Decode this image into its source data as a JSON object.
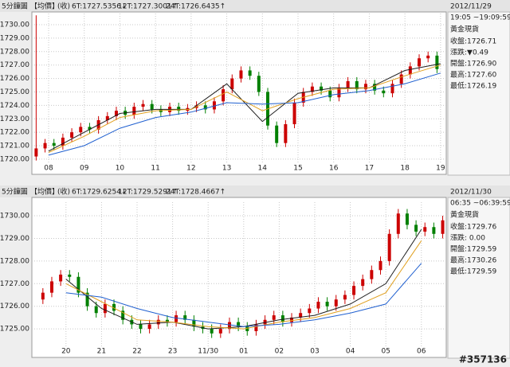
{
  "chart_data": [
    {
      "type": "candlestick",
      "header": [
        "5分鐘圖",
        "【均價】",
        "(收)"
      ],
      "info": {
        "date": "2012/11/29",
        "time": "19:05 ~19:09:59",
        "product": "黃金現貨",
        "rows": [
          "收盤:1726.71",
          "漲跌:▼0.49",
          "開盤:1726.90",
          "最高:1727.60",
          "最低:1726.19"
        ]
      },
      "up_color": "#cc0000",
      "down_color": "#008000",
      "xlim": [
        7.53,
        19.16
      ],
      "ylim": [
        1719.7,
        1730.83
      ],
      "xticks": [
        {
          "value": 8,
          "label": "08"
        },
        {
          "value": 9,
          "label": "09"
        },
        10,
        11,
        12,
        13,
        14,
        15,
        16,
        17,
        18,
        19
      ],
      "yticks": [
        {
          "value": 1720,
          "label": "1720.00"
        },
        {
          "value": 1721,
          "label": "1721.00"
        },
        {
          "value": 1722,
          "label": "1722.00"
        },
        {
          "value": 1723,
          "label": "1723.00"
        },
        {
          "value": 1724,
          "label": "1724.00"
        },
        {
          "value": 1725,
          "label": "1725.00"
        },
        {
          "value": 1726,
          "label": "1726.00"
        },
        {
          "value": 1727,
          "label": "1727.00"
        },
        {
          "value": 1728,
          "label": "1728.00"
        },
        {
          "value": 1729,
          "label": "1729.00"
        },
        {
          "value": 1730,
          "label": "1730.00"
        }
      ],
      "grid": true,
      "x": [
        7.65,
        7.9,
        8.15,
        8.4,
        8.65,
        8.9,
        9.15,
        9.4,
        9.65,
        9.9,
        10.15,
        10.4,
        10.65,
        10.9,
        11.15,
        11.4,
        11.65,
        11.9,
        12.15,
        12.4,
        12.65,
        12.9,
        13.15,
        13.4,
        13.65,
        13.9,
        14.15,
        14.4,
        14.65,
        14.9,
        15.15,
        15.4,
        15.65,
        15.9,
        16.15,
        16.4,
        16.65,
        16.9,
        17.15,
        17.4,
        17.65,
        17.9,
        18.15,
        18.4,
        18.65,
        18.9
      ],
      "open": [
        1720.2,
        1720.8,
        1721.2,
        1721.0,
        1721.6,
        1722.0,
        1722.4,
        1722.2,
        1722.9,
        1723.2,
        1723.6,
        1723.3,
        1723.9,
        1724.1,
        1723.7,
        1723.5,
        1723.9,
        1723.6,
        1723.8,
        1724.0,
        1723.7,
        1724.3,
        1725.2,
        1726.0,
        1726.6,
        1726.2,
        1725.0,
        1722.5,
        1721.2,
        1722.6,
        1724.2,
        1725.0,
        1725.4,
        1725.1,
        1724.6,
        1725.3,
        1725.8,
        1725.2,
        1725.6,
        1725.1,
        1724.9,
        1725.6,
        1726.3,
        1726.9,
        1727.5,
        1727.7
      ],
      "high": [
        1730.7,
        1721.5,
        1721.5,
        1721.9,
        1722.3,
        1722.7,
        1722.7,
        1723.2,
        1723.5,
        1723.9,
        1723.9,
        1724.2,
        1724.4,
        1724.4,
        1724.0,
        1724.2,
        1724.2,
        1724.1,
        1724.3,
        1724.3,
        1724.6,
        1725.5,
        1726.3,
        1726.9,
        1726.9,
        1726.5,
        1725.3,
        1722.8,
        1722.9,
        1724.5,
        1725.3,
        1725.7,
        1725.7,
        1725.4,
        1725.6,
        1726.1,
        1726.1,
        1725.9,
        1725.9,
        1725.4,
        1725.9,
        1726.6,
        1727.2,
        1727.8,
        1728.0,
        1728.0
      ],
      "low": [
        1719.9,
        1720.5,
        1720.7,
        1720.7,
        1721.3,
        1721.7,
        1721.9,
        1721.9,
        1722.6,
        1722.9,
        1723.0,
        1723.0,
        1723.6,
        1723.4,
        1723.2,
        1723.2,
        1723.3,
        1723.3,
        1723.5,
        1723.4,
        1723.4,
        1724.0,
        1724.9,
        1725.7,
        1725.9,
        1724.7,
        1722.2,
        1720.9,
        1720.9,
        1722.3,
        1723.9,
        1724.7,
        1724.8,
        1724.3,
        1724.3,
        1725.0,
        1724.9,
        1724.9,
        1724.8,
        1724.6,
        1724.6,
        1725.3,
        1726.0,
        1726.6,
        1727.2,
        1726.4
      ],
      "close": [
        1720.8,
        1721.2,
        1721.0,
        1721.6,
        1722.0,
        1722.4,
        1722.2,
        1722.9,
        1723.2,
        1723.6,
        1723.3,
        1723.9,
        1724.1,
        1723.7,
        1723.5,
        1723.9,
        1723.6,
        1723.8,
        1724.0,
        1723.7,
        1724.3,
        1725.2,
        1726.0,
        1726.6,
        1726.2,
        1725.0,
        1722.5,
        1721.2,
        1722.6,
        1724.2,
        1725.0,
        1725.4,
        1725.1,
        1724.6,
        1725.3,
        1725.8,
        1725.2,
        1725.6,
        1725.1,
        1724.9,
        1725.6,
        1726.3,
        1726.9,
        1727.5,
        1727.7,
        1726.7
      ],
      "series": [
        {
          "name": "6T:1727.5356↓",
          "color": "#1f1f1f",
          "x": [
            8,
            9,
            10,
            11,
            12,
            13,
            14,
            15,
            16,
            17,
            18,
            19
          ],
          "values": [
            1720.6,
            1722.0,
            1723.4,
            1723.7,
            1723.7,
            1725.6,
            1722.8,
            1724.9,
            1725.3,
            1725.3,
            1726.6,
            1727.1
          ]
        },
        {
          "name": "12T:1727.3001↑",
          "color": "#e0a020",
          "x": [
            8,
            9,
            10,
            11,
            12,
            13,
            14,
            15,
            16,
            17,
            18,
            19
          ],
          "values": [
            1720.5,
            1721.7,
            1723.1,
            1723.6,
            1723.7,
            1725.0,
            1723.6,
            1724.5,
            1725.2,
            1725.3,
            1726.2,
            1727.0
          ]
        },
        {
          "name": "24T:1726.6435↑",
          "color": "#2060d0",
          "x": [
            8,
            9,
            10,
            11,
            12,
            13,
            14,
            15,
            16,
            17,
            18,
            19
          ],
          "values": [
            1720.3,
            1721.0,
            1722.3,
            1723.1,
            1723.5,
            1724.2,
            1724.1,
            1724.2,
            1724.8,
            1725.1,
            1725.6,
            1726.4
          ]
        }
      ]
    },
    {
      "type": "candlestick",
      "header": [
        "5分鐘圖",
        "【均價】",
        "(收)"
      ],
      "info": {
        "date": "2012/11/30",
        "time": "06:35 ~06:39:59",
        "product": "黃金現貨",
        "rows": [
          "收盤:1729.76",
          "漲跌: 0.00",
          "開盤:1729.59",
          "最高:1730.26",
          "最低:1729.59"
        ]
      },
      "up_color": "#cc0000",
      "down_color": "#008000",
      "xlim": [
        19.04,
        30.7
      ],
      "ylim": [
        1724.23,
        1730.6
      ],
      "xticks": [
        20,
        21,
        22,
        23,
        {
          "value": 24,
          "label": "11/30"
        },
        {
          "value": 25,
          "label": "01"
        },
        {
          "value": 26,
          "label": "02"
        },
        {
          "value": 27,
          "label": "03"
        },
        {
          "value": 28,
          "label": "04"
        },
        {
          "value": 29,
          "label": "05"
        },
        {
          "value": 30,
          "label": "06"
        }
      ],
      "yticks": [
        {
          "value": 1725,
          "label": "1725.00"
        },
        {
          "value": 1726,
          "label": "1726.00"
        },
        {
          "value": 1727,
          "label": "1727.00"
        },
        {
          "value": 1728,
          "label": "1728.00"
        },
        {
          "value": 1729,
          "label": "1729.00"
        },
        {
          "value": 1730,
          "label": "1730.00"
        }
      ],
      "grid": true,
      "x": [
        19.35,
        19.6,
        19.85,
        20.1,
        20.35,
        20.6,
        20.85,
        21.1,
        21.35,
        21.6,
        21.85,
        22.1,
        22.35,
        22.6,
        22.85,
        23.1,
        23.35,
        23.6,
        23.85,
        24.1,
        24.35,
        24.6,
        24.85,
        25.1,
        25.35,
        25.6,
        25.85,
        26.1,
        26.35,
        26.6,
        26.85,
        27.1,
        27.35,
        27.6,
        27.85,
        28.1,
        28.35,
        28.6,
        28.85,
        29.1,
        29.35,
        29.6,
        29.85,
        30.1,
        30.35,
        30.6
      ],
      "open": [
        1726.3,
        1726.6,
        1727.1,
        1727.4,
        1727.3,
        1726.6,
        1726.0,
        1725.7,
        1726.1,
        1725.8,
        1725.4,
        1725.2,
        1725.0,
        1725.2,
        1725.4,
        1725.3,
        1725.6,
        1725.4,
        1725.1,
        1725.0,
        1724.8,
        1725.0,
        1725.3,
        1725.1,
        1724.9,
        1725.2,
        1725.4,
        1725.6,
        1725.3,
        1725.5,
        1725.7,
        1725.9,
        1726.2,
        1726.0,
        1726.3,
        1726.5,
        1726.9,
        1727.2,
        1727.6,
        1728.0,
        1729.2,
        1730.1,
        1729.6,
        1729.3,
        1729.5,
        1729.2
      ],
      "high": [
        1726.8,
        1727.3,
        1727.6,
        1727.6,
        1727.5,
        1726.8,
        1726.2,
        1726.3,
        1726.3,
        1726.0,
        1725.6,
        1725.4,
        1725.4,
        1725.6,
        1725.6,
        1725.8,
        1725.8,
        1725.6,
        1725.3,
        1725.2,
        1725.2,
        1725.5,
        1725.5,
        1725.3,
        1725.4,
        1725.6,
        1725.8,
        1725.8,
        1725.7,
        1725.9,
        1726.1,
        1726.4,
        1726.4,
        1726.5,
        1726.7,
        1727.1,
        1727.4,
        1727.8,
        1728.2,
        1729.4,
        1730.3,
        1730.3,
        1729.8,
        1729.7,
        1729.7,
        1730.0
      ],
      "low": [
        1726.1,
        1726.4,
        1726.9,
        1727.1,
        1726.4,
        1725.8,
        1725.5,
        1725.5,
        1725.6,
        1725.2,
        1725.0,
        1724.8,
        1724.8,
        1725.0,
        1725.1,
        1725.1,
        1725.2,
        1724.9,
        1724.8,
        1724.6,
        1724.6,
        1724.8,
        1724.9,
        1724.7,
        1724.7,
        1725.0,
        1725.2,
        1725.1,
        1725.1,
        1725.3,
        1725.5,
        1725.7,
        1725.8,
        1725.8,
        1726.1,
        1726.3,
        1726.7,
        1727.0,
        1727.4,
        1727.8,
        1729.0,
        1729.4,
        1729.1,
        1729.1,
        1729.0,
        1729.0
      ],
      "close": [
        1726.6,
        1727.1,
        1727.4,
        1727.3,
        1726.6,
        1726.0,
        1725.7,
        1726.1,
        1725.8,
        1725.4,
        1725.2,
        1725.0,
        1725.2,
        1725.4,
        1725.3,
        1725.6,
        1725.4,
        1725.1,
        1725.0,
        1724.8,
        1725.0,
        1725.3,
        1725.1,
        1724.9,
        1725.2,
        1725.4,
        1725.6,
        1725.3,
        1725.5,
        1725.7,
        1725.9,
        1726.2,
        1726.0,
        1726.3,
        1726.5,
        1726.9,
        1727.2,
        1727.6,
        1728.0,
        1729.2,
        1730.1,
        1729.6,
        1729.3,
        1729.5,
        1729.2,
        1729.8
      ],
      "series": [
        {
          "name": "6T:1729.6254↓",
          "color": "#1f1f1f",
          "x": [
            20,
            21,
            22,
            23,
            24,
            25,
            26,
            27,
            28,
            29,
            30
          ],
          "values": [
            1727.2,
            1725.9,
            1725.2,
            1725.3,
            1725.0,
            1725.1,
            1725.4,
            1725.6,
            1726.1,
            1727.0,
            1729.4
          ]
        },
        {
          "name": "12T:1729.5291↑",
          "color": "#e0a020",
          "x": [
            20,
            21,
            22,
            23,
            24,
            25,
            26,
            27,
            28,
            29,
            30
          ],
          "values": [
            1727.0,
            1726.2,
            1725.4,
            1725.3,
            1725.1,
            1725.0,
            1725.3,
            1725.5,
            1725.9,
            1726.6,
            1728.9
          ]
        },
        {
          "name": "24T:1728.4667↑",
          "color": "#2060d0",
          "x": [
            20,
            21,
            22,
            23,
            24,
            25,
            26,
            27,
            28,
            29,
            30
          ],
          "values": [
            1726.6,
            1726.4,
            1725.9,
            1725.5,
            1725.3,
            1725.1,
            1725.2,
            1725.4,
            1725.7,
            1726.1,
            1727.9
          ]
        }
      ]
    }
  ],
  "watermark_id": "#357136"
}
